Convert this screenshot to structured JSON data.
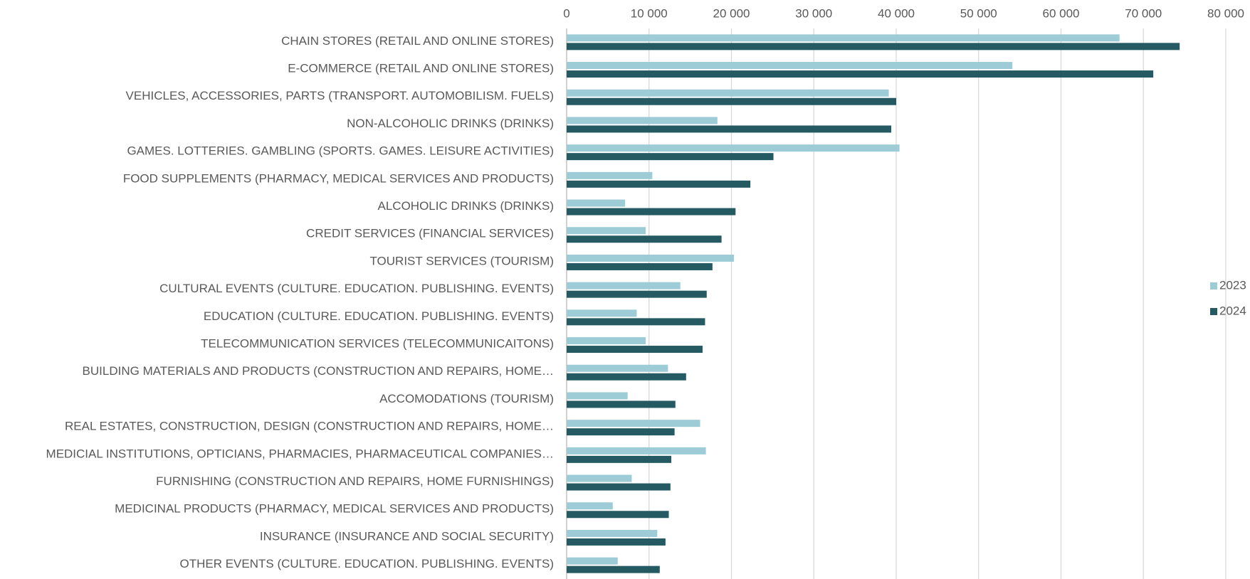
{
  "chart_data": {
    "type": "bar",
    "orientation": "horizontal",
    "categories": [
      "CHAIN STORES (RETAIL AND ONLINE STORES)",
      "E-COMMERCE (RETAIL AND ONLINE STORES)",
      "VEHICLES, ACCESSORIES, PARTS (TRANSPORT. AUTOMOBILISM. FUELS)",
      "NON-ALCOHOLIC DRINKS (DRINKS)",
      "GAMES. LOTTERIES. GAMBLING (SPORTS. GAMES. LEISURE ACTIVITIES)",
      "FOOD SUPPLEMENTS (PHARMACY, MEDICAL SERVICES AND PRODUCTS)",
      "ALCOHOLIC DRINKS (DRINKS)",
      "CREDIT SERVICES (FINANCIAL SERVICES)",
      "TOURIST SERVICES (TOURISM)",
      "CULTURAL EVENTS (CULTURE. EDUCATION. PUBLISHING. EVENTS)",
      "EDUCATION (CULTURE. EDUCATION. PUBLISHING. EVENTS)",
      "TELECOMMUNICATION SERVICES (TELECOMMUNICAITONS)",
      "BUILDING MATERIALS AND PRODUCTS (CONSTRUCTION AND REPAIRS, HOME…",
      "ACCOMODATIONS (TOURISM)",
      "REAL ESTATES, CONSTRUCTION, DESIGN (CONSTRUCTION AND REPAIRS, HOME…",
      "MEDICIAL INSTITUTIONS, OPTICIANS, PHARMACIES, PHARMACEUTICAL COMPANIES…",
      "FURNISHING (CONSTRUCTION AND REPAIRS, HOME FURNISHINGS)",
      "MEDICINAL PRODUCTS (PHARMACY, MEDICAL SERVICES AND PRODUCTS)",
      "INSURANCE (INSURANCE AND SOCIAL SECURITY)",
      "OTHER EVENTS (CULTURE. EDUCATION. PUBLISHING. EVENTS)"
    ],
    "series": [
      {
        "name": "2023",
        "color": "#9dcbd6",
        "values": [
          67100,
          54100,
          39100,
          18300,
          40400,
          10400,
          7100,
          9600,
          20300,
          13800,
          8500,
          9600,
          12300,
          7400,
          16200,
          16900,
          7900,
          5600,
          11000,
          6200
        ]
      },
      {
        "name": "2024",
        "color": "#255a63",
        "values": [
          74400,
          71200,
          40000,
          39400,
          25100,
          22300,
          20500,
          18800,
          17700,
          17000,
          16800,
          16500,
          14500,
          13200,
          13100,
          12700,
          12600,
          12400,
          12000,
          11300
        ]
      }
    ],
    "xlim": [
      0,
      80000
    ],
    "xticks": [
      0,
      {
        "value": 10000,
        "label": "10 000"
      },
      {
        "value": 20000,
        "label": "20 000"
      },
      {
        "value": 30000,
        "label": "30 000"
      },
      {
        "value": 40000,
        "label": "40 000"
      },
      {
        "value": 50000,
        "label": "50 000"
      },
      {
        "value": 60000,
        "label": "60 000"
      },
      {
        "value": 70000,
        "label": "70 000"
      },
      {
        "value": 80000,
        "label": "80 000"
      }
    ],
    "grid": true,
    "legend": "right"
  }
}
